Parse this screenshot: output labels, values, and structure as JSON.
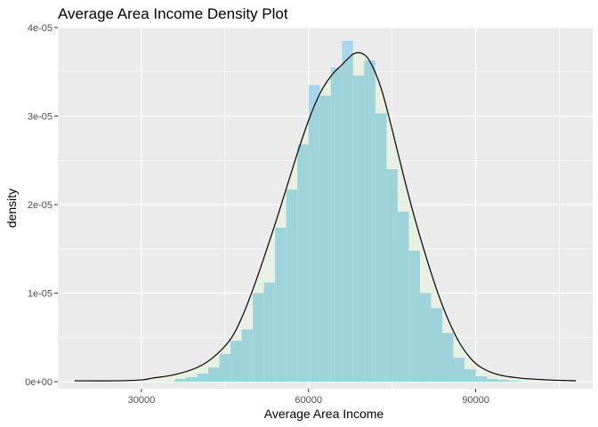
{
  "chart_data": {
    "type": "bar",
    "title": "Average Area Income Density Plot",
    "xlabel": "Average Area Income",
    "ylabel": "density",
    "xlim": [
      15000,
      111000
    ],
    "ylim": [
      -8e-07,
      4.01e-05
    ],
    "x_ticks": [
      30000,
      60000,
      90000
    ],
    "x_tick_labels": [
      "30000",
      "60000",
      "90000"
    ],
    "y_ticks": [
      0,
      1e-05,
      2e-05,
      3e-05,
      4e-05
    ],
    "y_tick_labels": [
      "0e+00",
      "1e-05",
      "2e-05",
      "3e-05",
      "4e-05"
    ],
    "grid": true,
    "histogram": {
      "bin_width": 2000,
      "bins": [
        {
          "x": 37000,
          "y": 3e-07
        },
        {
          "x": 39000,
          "y": 5e-07
        },
        {
          "x": 41000,
          "y": 9e-07
        },
        {
          "x": 43000,
          "y": 1.6e-06
        },
        {
          "x": 45000,
          "y": 3.1e-06
        },
        {
          "x": 47000,
          "y": 4.6e-06
        },
        {
          "x": 49000,
          "y": 5.9e-06
        },
        {
          "x": 51000,
          "y": 1e-05
        },
        {
          "x": 53000,
          "y": 1.12e-05
        },
        {
          "x": 55000,
          "y": 1.74e-05
        },
        {
          "x": 57000,
          "y": 2.17e-05
        },
        {
          "x": 59000,
          "y": 2.68e-05
        },
        {
          "x": 61000,
          "y": 3.35e-05
        },
        {
          "x": 63000,
          "y": 3.23e-05
        },
        {
          "x": 65000,
          "y": 3.55e-05
        },
        {
          "x": 67000,
          "y": 3.85e-05
        },
        {
          "x": 69000,
          "y": 3.46e-05
        },
        {
          "x": 71000,
          "y": 3.63e-05
        },
        {
          "x": 73000,
          "y": 3.03e-05
        },
        {
          "x": 75000,
          "y": 2.4e-05
        },
        {
          "x": 77000,
          "y": 1.92e-05
        },
        {
          "x": 79000,
          "y": 1.48e-05
        },
        {
          "x": 81000,
          "y": 1e-05
        },
        {
          "x": 83000,
          "y": 8.3e-06
        },
        {
          "x": 85000,
          "y": 5.5e-06
        },
        {
          "x": 87000,
          "y": 2.7e-06
        },
        {
          "x": 89000,
          "y": 1.4e-06
        },
        {
          "x": 91000,
          "y": 6e-07
        },
        {
          "x": 93000,
          "y": 3e-07
        },
        {
          "x": 95000,
          "y": 2e-07
        },
        {
          "x": 97000,
          "y": 1e-07
        }
      ]
    },
    "density_curve": {
      "x": [
        18000,
        25000,
        30000,
        32000,
        36000,
        40000,
        43000,
        46000,
        48000,
        50000,
        52000,
        54000,
        56000,
        58000,
        60000,
        62000,
        64000,
        66000,
        68000,
        69500,
        71000,
        73000,
        75000,
        77000,
        79000,
        81000,
        83000,
        85000,
        87000,
        89000,
        91000,
        94000,
        98000,
        103000,
        108000
      ],
      "y": [
        1e-07,
        1e-07,
        2e-07,
        4e-07,
        8e-07,
        1.6e-06,
        2.8e-06,
        4.8e-06,
        7.2e-06,
        1.04e-05,
        1.4e-05,
        1.78e-05,
        2.18e-05,
        2.58e-05,
        2.95e-05,
        3.25e-05,
        3.45e-05,
        3.58e-05,
        3.7e-05,
        3.71e-05,
        3.62e-05,
        3.32e-05,
        2.85e-05,
        2.34e-05,
        1.86e-05,
        1.43e-05,
        1.04e-05,
        7.1e-06,
        4.5e-06,
        2.7e-06,
        1.6e-06,
        8e-07,
        4e-07,
        2e-07,
        1e-07
      ]
    },
    "colors": {
      "panel_background": "#ebebeb",
      "grid": "#ffffff",
      "histogram_fill": "#a8d6ec",
      "density_fill": "#e7f0e3",
      "overlap_fill": "#9dd3d9",
      "curve": "#000000"
    }
  }
}
